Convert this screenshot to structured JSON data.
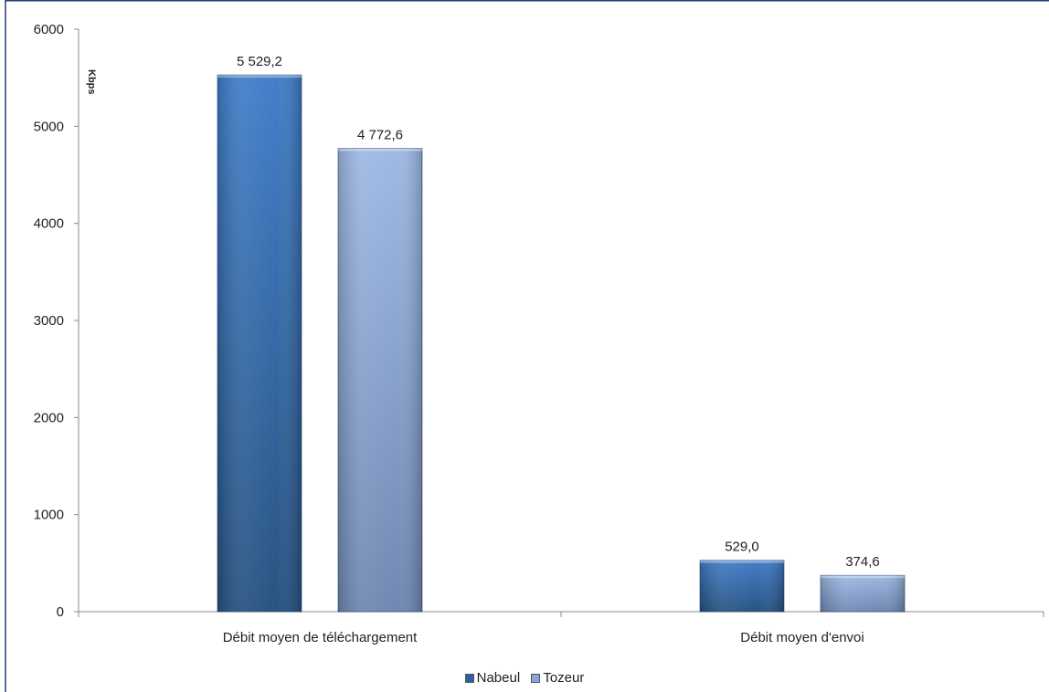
{
  "chart_data": {
    "type": "bar",
    "categories": [
      "Débit moyen de téléchargement",
      "Débit moyen d'envoi"
    ],
    "series": [
      {
        "name": "Nabeul",
        "values": [
          5529.2,
          529.0
        ],
        "labels": [
          "5 529,2",
          "529,0"
        ],
        "color": "#2f5f9f"
      },
      {
        "name": "Tozeur",
        "values": [
          4772.6,
          374.6
        ],
        "labels": [
          "4 772,6",
          "374,6"
        ],
        "color": "#8aa6d6"
      }
    ],
    "ylabel": "Kbps",
    "ylim": [
      0,
      6000
    ],
    "yticks": [
      "0",
      "1000",
      "2000",
      "3000",
      "4000",
      "5000",
      "6000"
    ],
    "grid": false,
    "legend_position": "bottom"
  }
}
